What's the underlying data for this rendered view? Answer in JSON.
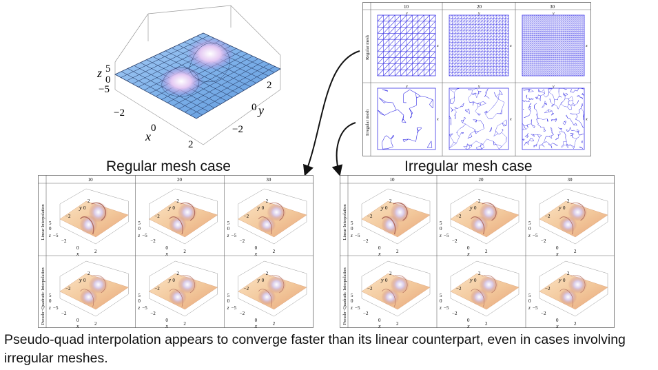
{
  "surface_plot": {
    "axis_x": "x",
    "axis_y": "y",
    "axis_z": "z",
    "x_ticks": [
      "−2",
      "0",
      "2"
    ],
    "y_ticks": [
      "2",
      "0",
      "−2"
    ],
    "z_ticks": [
      "5",
      "0",
      "−5"
    ],
    "colors": {
      "surface": "#7fb2ea",
      "grid": "#2a3f6a",
      "peak": "#c9a7e8"
    }
  },
  "mesh_panel": {
    "columns": [
      "10",
      "20",
      "30"
    ],
    "rows": [
      "Regular mesh",
      "Irregular mesh"
    ],
    "axis_x": "x",
    "axis_y": "y",
    "line_color": "#3a33e6"
  },
  "regular_heading": "Regular mesh case",
  "irregular_heading": "Irregular mesh case",
  "result_panel": {
    "columns": [
      "10",
      "20",
      "30"
    ],
    "rows": [
      "Linear Interpolation",
      "Pseudo−Quadratic Interpolation"
    ],
    "axis_x": "x",
    "axis_y": "y",
    "axis_z": "z",
    "x_ticks": [
      "−2",
      "0",
      "2"
    ],
    "y_ticks": [
      "2",
      "0",
      "−2"
    ],
    "z_ticks": [
      "5",
      "0",
      "−5"
    ],
    "colors": {
      "surface": "#f2c79a",
      "peak": "#c97a6a"
    }
  },
  "caption": "Pseudo-quad interpolation appears to converge faster than its linear counterpart, even in cases involving irregular meshes."
}
